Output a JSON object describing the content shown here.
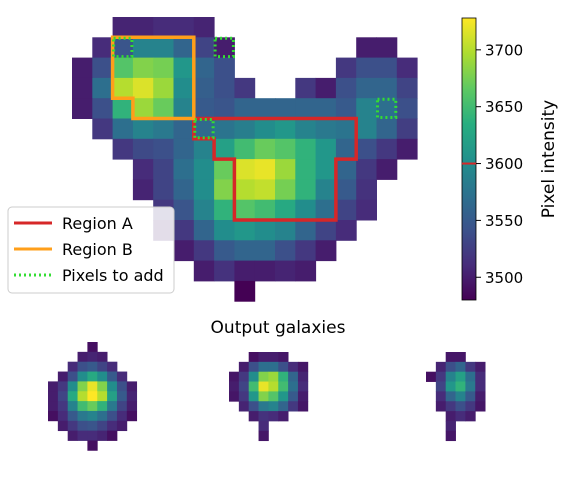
{
  "chart_data": [
    {
      "type": "heatmap",
      "title": "",
      "colorbar": {
        "label": "Pixel intensity",
        "ticks": [
          3500,
          3550,
          3600,
          3650,
          3700
        ],
        "tick_labels": [
          "3500",
          "3550",
          "3600",
          "3650",
          "3700"
        ],
        "range": [
          3480,
          3728
        ],
        "marker_value": 3600,
        "marker_color": "#d62728",
        "colormap": "viridis"
      },
      "grid": {
        "rows": 14,
        "cols": 18,
        "values": [
          [
            null,
            null,
            3505,
            3505,
            3510,
            3510,
            3505,
            null,
            null,
            null,
            null,
            null,
            null,
            null,
            null,
            null,
            null,
            null
          ],
          [
            null,
            3510,
            3545,
            3590,
            3590,
            3560,
            3530,
            3500,
            null,
            null,
            null,
            null,
            null,
            null,
            3500,
            3500,
            null,
            null
          ],
          [
            3500,
            3540,
            3660,
            3680,
            3675,
            3610,
            3560,
            3540,
            null,
            null,
            null,
            null,
            null,
            3520,
            3540,
            3540,
            3510,
            null
          ],
          [
            3500,
            3570,
            3700,
            3715,
            3690,
            3600,
            3555,
            3540,
            3520,
            null,
            null,
            3520,
            3500,
            3540,
            3560,
            3560,
            3530,
            null
          ],
          [
            3500,
            3540,
            3640,
            3690,
            3670,
            3590,
            3550,
            3545,
            3560,
            3560,
            3560,
            3560,
            3560,
            3550,
            3590,
            3570,
            3540,
            null
          ],
          [
            null,
            3520,
            3570,
            3590,
            3580,
            3560,
            3565,
            3575,
            3585,
            3600,
            3610,
            3590,
            3580,
            3575,
            3590,
            3560,
            3525,
            null
          ],
          [
            null,
            null,
            3520,
            3535,
            3540,
            3560,
            3590,
            3620,
            3650,
            3670,
            3660,
            3640,
            3610,
            3560,
            3540,
            3520,
            3500,
            null
          ],
          [
            null,
            null,
            null,
            3510,
            3530,
            3570,
            3600,
            3670,
            3715,
            3720,
            3690,
            3640,
            3610,
            3560,
            3520,
            3500,
            null,
            null
          ],
          [
            null,
            null,
            null,
            3505,
            3530,
            3560,
            3600,
            3680,
            3700,
            3705,
            3675,
            3640,
            3590,
            3550,
            3515,
            null,
            null,
            null
          ],
          [
            null,
            null,
            null,
            null,
            3520,
            3545,
            3590,
            3640,
            3660,
            3650,
            3630,
            3600,
            3570,
            3530,
            3510,
            null,
            null,
            null
          ],
          [
            null,
            null,
            null,
            null,
            3500,
            3520,
            3560,
            3600,
            3610,
            3600,
            3590,
            3560,
            3530,
            3510,
            null,
            null,
            null,
            null
          ],
          [
            null,
            null,
            null,
            null,
            null,
            3500,
            3520,
            3550,
            3560,
            3560,
            3540,
            3520,
            3500,
            null,
            null,
            null,
            null,
            null
          ],
          [
            null,
            null,
            null,
            null,
            null,
            null,
            3500,
            3515,
            3500,
            3500,
            3505,
            3500,
            null,
            null,
            null,
            null,
            null,
            null
          ],
          [
            null,
            null,
            null,
            null,
            null,
            null,
            null,
            null,
            3480,
            null,
            null,
            null,
            null,
            null,
            null,
            null,
            null,
            null
          ]
        ]
      },
      "regions": [
        {
          "name": "Region A",
          "color": "#d62728",
          "outline_cells": [
            [
              6,
              5
            ],
            [
              14,
              5
            ],
            [
              14,
              7
            ],
            [
              13,
              7
            ],
            [
              13,
              10
            ],
            [
              8,
              10
            ],
            [
              8,
              7
            ],
            [
              7,
              7
            ],
            [
              7,
              6
            ],
            [
              6,
              6
            ]
          ]
        },
        {
          "name": "Region B",
          "color": "#ff9f1a",
          "outline_cells": [
            [
              2,
              1
            ],
            [
              6,
              1
            ],
            [
              6,
              5
            ],
            [
              3,
              5
            ],
            [
              3,
              4
            ],
            [
              2,
              4
            ]
          ]
        }
      ],
      "pixels_to_add": {
        "name": "Pixels to add",
        "color": "#33dd33",
        "cells": [
          [
            2,
            1
          ],
          [
            7,
            1
          ],
          [
            6,
            5
          ],
          [
            15,
            4
          ]
        ]
      },
      "legend": {
        "position": "lower-left",
        "entries": [
          "Region A",
          "Region B",
          "Pixels to add"
        ]
      }
    },
    {
      "type": "heatmap",
      "title": "Output galaxies",
      "panels": [
        {
          "rows": 11,
          "cols": 10,
          "values": [
            [
              null,
              null,
              null,
              null,
              3490,
              null,
              null,
              null,
              null,
              null
            ],
            [
              null,
              null,
              null,
              3500,
              3505,
              3500,
              null,
              null,
              null,
              null
            ],
            [
              null,
              null,
              3510,
              3540,
              3550,
              3530,
              3510,
              null,
              null,
              null
            ],
            [
              null,
              3500,
              3540,
              3600,
              3630,
              3600,
              3550,
              3510,
              null,
              null
            ],
            [
              3500,
              3520,
              3600,
              3680,
              3720,
              3680,
              3600,
              3540,
              3500,
              null
            ],
            [
              3500,
              3530,
              3630,
              3700,
              3728,
              3700,
              3620,
              3550,
              3505,
              null
            ],
            [
              3500,
              3520,
              3590,
              3650,
              3670,
              3640,
              3580,
              3530,
              3500,
              null
            ],
            [
              3490,
              3510,
              3550,
              3580,
              3590,
              3570,
              3540,
              3510,
              3490,
              null
            ],
            [
              null,
              3500,
              3520,
              3540,
              3545,
              3530,
              3510,
              3500,
              null,
              null
            ],
            [
              null,
              null,
              3500,
              3510,
              3510,
              3505,
              3490,
              null,
              null,
              null
            ],
            [
              null,
              null,
              null,
              null,
              3490,
              null,
              null,
              null,
              null,
              null
            ]
          ]
        },
        {
          "rows": 9,
          "cols": 9,
          "values": [
            [
              null,
              null,
              3490,
              3500,
              3500,
              3495,
              null,
              null,
              null
            ],
            [
              null,
              3500,
              3540,
              3570,
              3570,
              3540,
              3510,
              3495,
              null
            ],
            [
              3495,
              3520,
              3600,
              3680,
              3690,
              3640,
              3560,
              3505,
              null
            ],
            [
              3500,
              3530,
              3650,
              3720,
              3700,
              3650,
              3570,
              3510,
              null
            ],
            [
              3495,
              3520,
              3610,
              3680,
              3660,
              3610,
              3550,
              3500,
              null
            ],
            [
              null,
              3505,
              3540,
              3580,
              3590,
              3560,
              3520,
              3495,
              null
            ],
            [
              null,
              null,
              3500,
              3515,
              3510,
              3500,
              null,
              null,
              null
            ],
            [
              null,
              null,
              null,
              3510,
              null,
              null,
              null,
              null,
              null
            ],
            [
              null,
              null,
              null,
              3495,
              null,
              null,
              null,
              null,
              null
            ]
          ]
        },
        {
          "rows": 9,
          "cols": 7,
          "values": [
            [
              null,
              null,
              3495,
              3495,
              null,
              null,
              null
            ],
            [
              null,
              3505,
              3540,
              3560,
              3520,
              3500,
              null
            ],
            [
              3490,
              3520,
              3590,
              3620,
              3570,
              3510,
              null
            ],
            [
              null,
              3530,
              3610,
              3640,
              3580,
              3510,
              null
            ],
            [
              null,
              3510,
              3560,
              3590,
              3550,
              3500,
              null
            ],
            [
              null,
              3500,
              3520,
              3540,
              3520,
              3495,
              null
            ],
            [
              null,
              null,
              3500,
              3510,
              3500,
              null,
              null
            ],
            [
              null,
              null,
              3505,
              null,
              null,
              null,
              null
            ],
            [
              null,
              null,
              3495,
              null,
              null,
              null,
              null
            ]
          ]
        }
      ]
    }
  ]
}
